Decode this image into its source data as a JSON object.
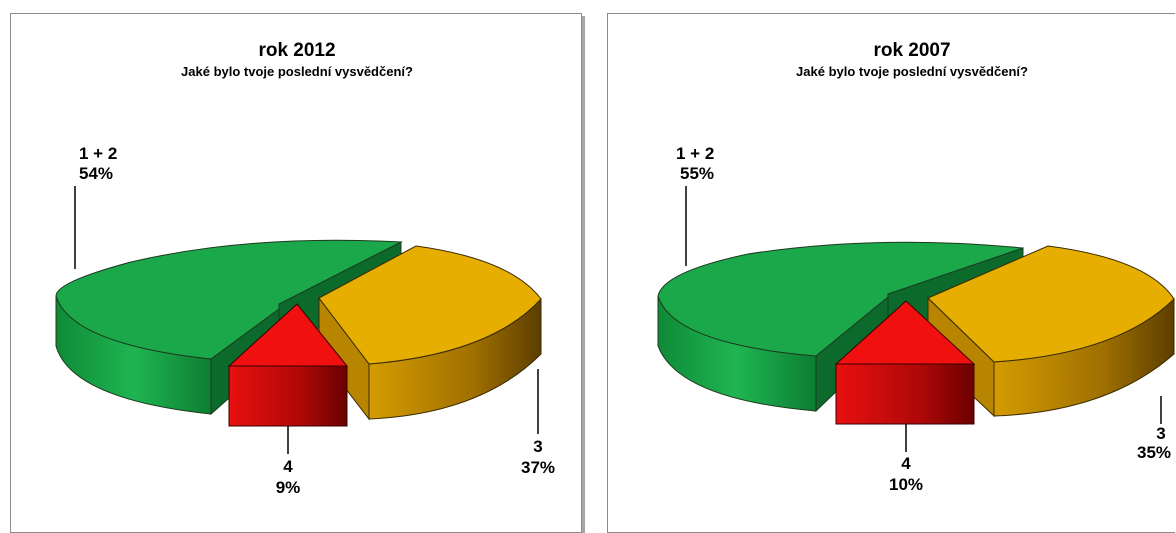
{
  "chart_data": [
    {
      "type": "pie",
      "title": "rok 2012",
      "subtitle": "Jaké bylo tvoje poslední vysvědčení?",
      "categories": [
        "1 + 2",
        "3",
        "4"
      ],
      "values": [
        54,
        37,
        9
      ],
      "value_labels": [
        "54%",
        "37%",
        "9%"
      ],
      "colors": [
        "#1aa84a",
        "#e5ae00",
        "#e81010"
      ],
      "exploded": true
    },
    {
      "type": "pie",
      "title": "rok 2007",
      "subtitle": "Jaké bylo tvoje poslední vysvědčení?",
      "categories": [
        "1 + 2",
        "3",
        "4"
      ],
      "values": [
        55,
        35,
        10
      ],
      "value_labels": [
        "55%",
        "35%",
        "10%"
      ],
      "colors": [
        "#1aa84a",
        "#e5ae00",
        "#e81010"
      ],
      "exploded": true
    }
  ]
}
